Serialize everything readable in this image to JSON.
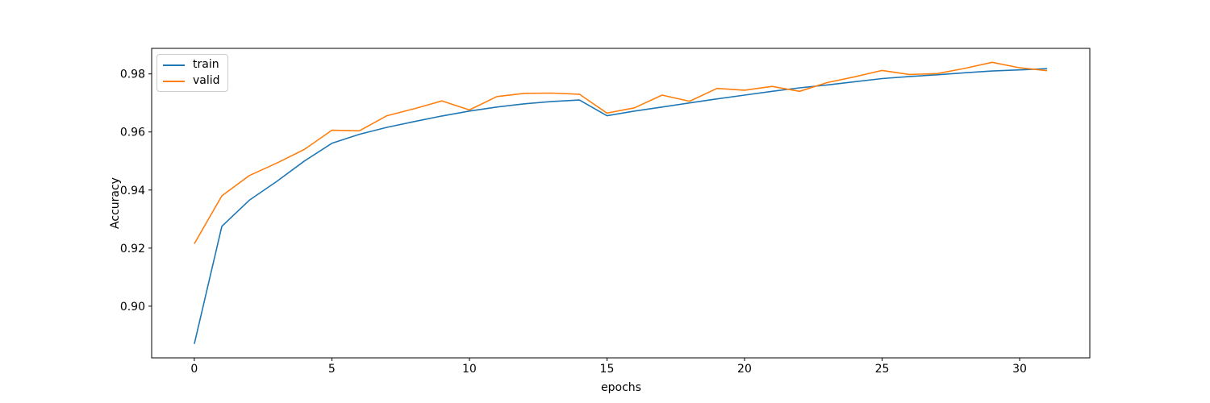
{
  "figure": {
    "background": "#ffffff",
    "text_color": "#000000",
    "spine_color": "#000000"
  },
  "legend": {
    "position": "upper left",
    "items": [
      {
        "label": "train",
        "color": "#1f77b4"
      },
      {
        "label": "valid",
        "color": "#ff7f0e"
      }
    ]
  },
  "chart_data": {
    "type": "line",
    "title": "",
    "xlabel": "epochs",
    "ylabel": "Accuracy",
    "grid": false,
    "legend_position": "upper left",
    "xlim": [
      -1.55,
      32.55
    ],
    "ylim": [
      0.8822,
      0.9888
    ],
    "x_ticks": [
      0,
      5,
      10,
      15,
      20,
      25,
      30
    ],
    "x_tick_labels": [
      "0",
      "5",
      "10",
      "15",
      "20",
      "25",
      "30"
    ],
    "y_ticks": [
      0.9,
      0.92,
      0.94,
      0.96,
      0.98
    ],
    "y_tick_labels": [
      "0.90",
      "0.92",
      "0.94",
      "0.96",
      "0.98"
    ],
    "x": [
      0,
      1,
      2,
      3,
      4,
      5,
      6,
      7,
      8,
      9,
      10,
      11,
      12,
      13,
      14,
      15,
      16,
      17,
      18,
      19,
      20,
      21,
      22,
      23,
      24,
      25,
      26,
      27,
      28,
      29,
      30,
      31
    ],
    "series": [
      {
        "name": "train",
        "color": "#1f77b4",
        "values": [
          0.887,
          0.9275,
          0.9365,
          0.943,
          0.95,
          0.9561,
          0.9592,
          0.9616,
          0.9636,
          0.9655,
          0.9672,
          0.9686,
          0.9697,
          0.9705,
          0.971,
          0.9656,
          0.9672,
          0.9686,
          0.97,
          0.9714,
          0.9727,
          0.974,
          0.9752,
          0.9762,
          0.9773,
          0.9784,
          0.9791,
          0.9797,
          0.9804,
          0.981,
          0.9814,
          0.9818
        ]
      },
      {
        "name": "valid",
        "color": "#ff7f0e",
        "values": [
          0.9215,
          0.938,
          0.945,
          0.9493,
          0.954,
          0.9606,
          0.9604,
          0.9656,
          0.968,
          0.9707,
          0.9676,
          0.9722,
          0.9733,
          0.9734,
          0.973,
          0.9665,
          0.9683,
          0.9727,
          0.9706,
          0.975,
          0.9744,
          0.9757,
          0.974,
          0.977,
          0.979,
          0.9812,
          0.9798,
          0.9801,
          0.9819,
          0.984,
          0.9821,
          0.9811
        ]
      }
    ]
  }
}
